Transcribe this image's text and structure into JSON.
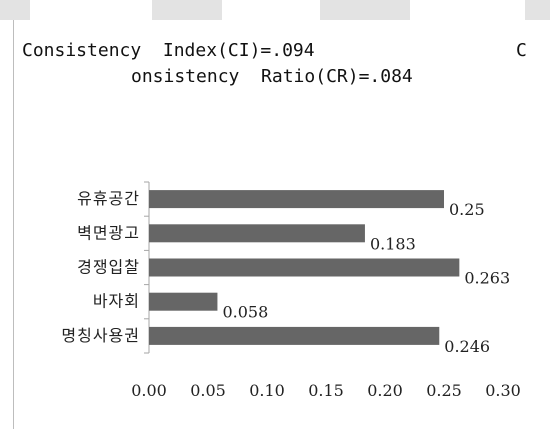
{
  "header": {
    "ci_text": "Consistency  Index(CI)=.094",
    "ci_wrap_char": "C",
    "cr_text": "onsistency  Ratio(CR)=.084"
  },
  "colors": {
    "bar": "#666666",
    "axis": "#a6a6a6",
    "top_band": "#e3e3e3"
  },
  "chart_data": {
    "type": "bar",
    "orientation": "horizontal",
    "categories": [
      "유휴공간",
      "벽면광고",
      "경쟁입찰",
      "바자회",
      "명칭사용권"
    ],
    "values": [
      0.25,
      0.183,
      0.263,
      0.058,
      0.246
    ],
    "value_labels": [
      "0.25",
      "0.183",
      "0.263",
      "0.058",
      "0.246"
    ],
    "x_ticks": [
      "0.00",
      "0.05",
      "0.10",
      "0.15",
      "0.20",
      "0.25",
      "0.30"
    ],
    "xlim": [
      0,
      0.3
    ],
    "grid": false,
    "legend": "none"
  }
}
